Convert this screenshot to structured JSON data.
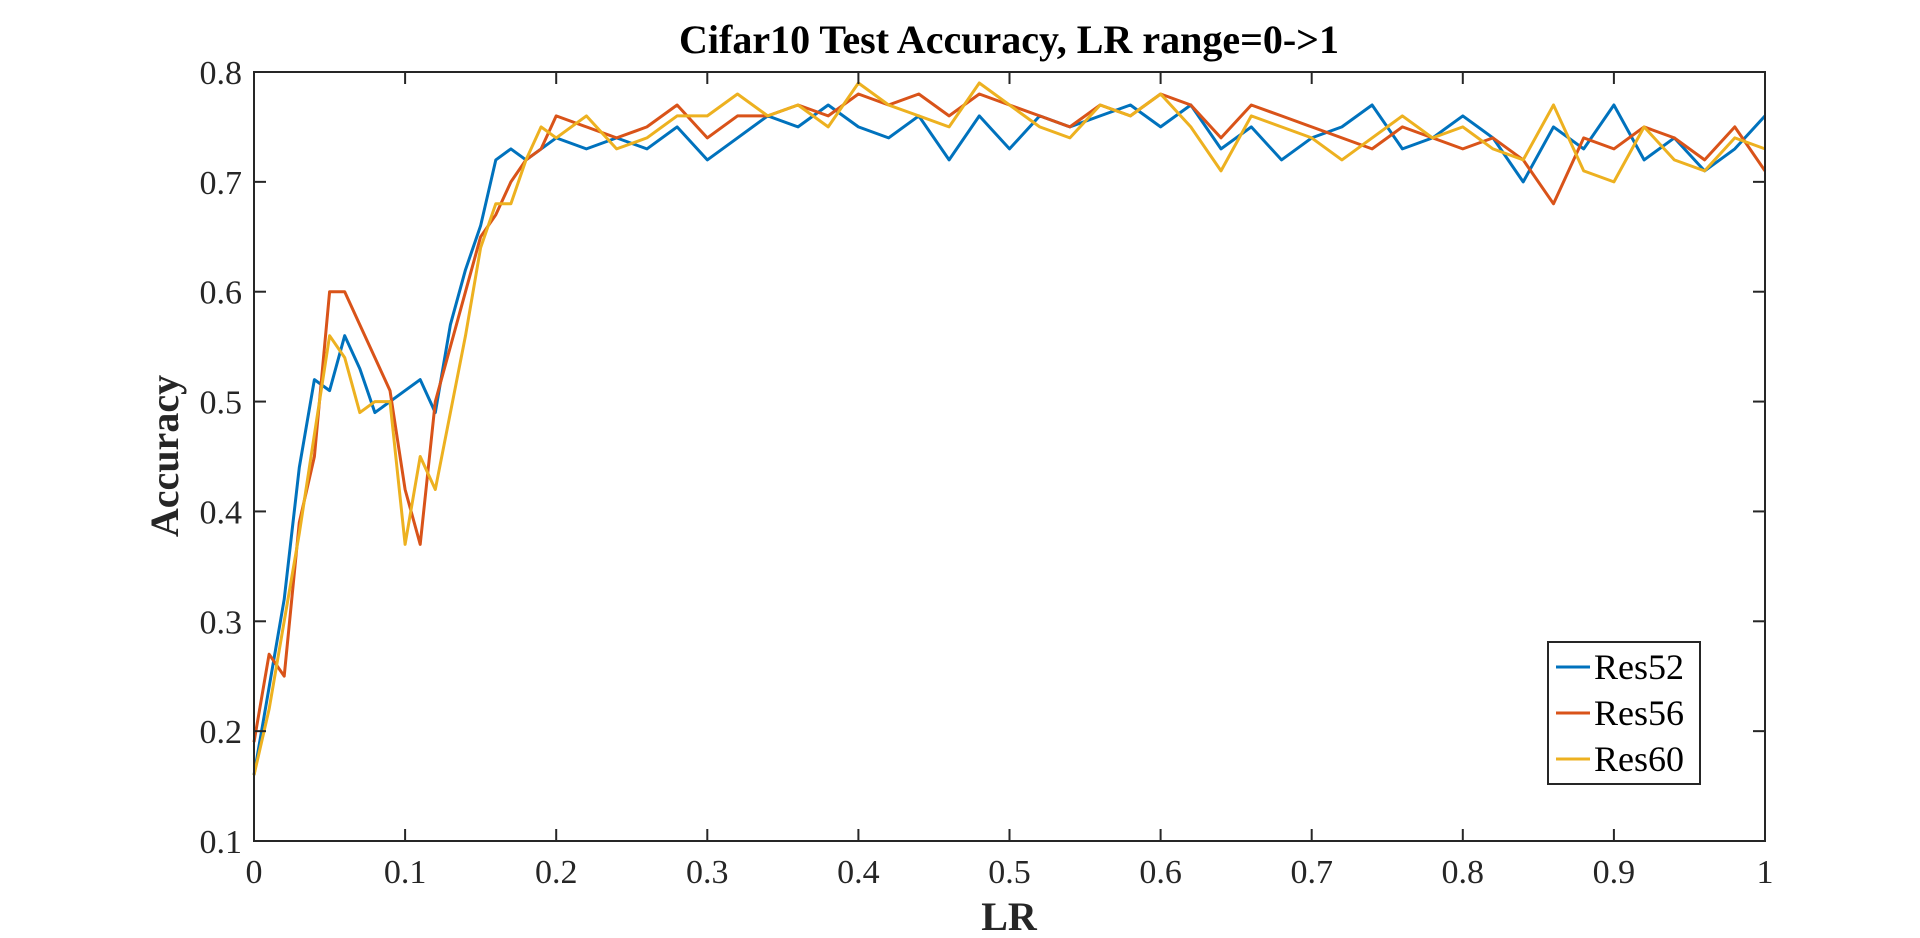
{
  "chart_data": {
    "type": "line",
    "title": "Cifar10 Test Accuracy, LR range=0->1",
    "xlabel": "LR",
    "ylabel": "Accuracy",
    "xlim": [
      0,
      1
    ],
    "ylim": [
      0.1,
      0.8
    ],
    "xticks": [
      "0",
      "0.1",
      "0.2",
      "0.3",
      "0.4",
      "0.5",
      "0.6",
      "0.7",
      "0.8",
      "0.9",
      "1"
    ],
    "yticks": [
      "0.1",
      "0.2",
      "0.3",
      "0.4",
      "0.5",
      "0.6",
      "0.7",
      "0.8"
    ],
    "grid": false,
    "legend_position": "bottom-right",
    "x": [
      0,
      0.01,
      0.02,
      0.03,
      0.04,
      0.05,
      0.06,
      0.07,
      0.08,
      0.09,
      0.1,
      0.11,
      0.12,
      0.13,
      0.14,
      0.15,
      0.16,
      0.17,
      0.18,
      0.19,
      0.2,
      0.22,
      0.24,
      0.26,
      0.28,
      0.3,
      0.32,
      0.34,
      0.36,
      0.38,
      0.4,
      0.42,
      0.44,
      0.46,
      0.48,
      0.5,
      0.52,
      0.54,
      0.56,
      0.58,
      0.6,
      0.62,
      0.64,
      0.66,
      0.68,
      0.7,
      0.72,
      0.74,
      0.76,
      0.78,
      0.8,
      0.82,
      0.84,
      0.86,
      0.88,
      0.9,
      0.92,
      0.94,
      0.96,
      0.98,
      1.0
    ],
    "series": [
      {
        "name": "Res52",
        "color": "#0072BD",
        "values": [
          0.16,
          0.24,
          0.32,
          0.44,
          0.52,
          0.51,
          0.56,
          0.53,
          0.49,
          0.5,
          0.51,
          0.52,
          0.49,
          0.57,
          0.62,
          0.66,
          0.72,
          0.73,
          0.72,
          0.73,
          0.74,
          0.73,
          0.74,
          0.73,
          0.75,
          0.72,
          0.74,
          0.76,
          0.75,
          0.77,
          0.75,
          0.74,
          0.76,
          0.72,
          0.76,
          0.73,
          0.76,
          0.75,
          0.76,
          0.77,
          0.75,
          0.77,
          0.73,
          0.75,
          0.72,
          0.74,
          0.75,
          0.77,
          0.73,
          0.74,
          0.76,
          0.74,
          0.7,
          0.75,
          0.73,
          0.77,
          0.72,
          0.74,
          0.71,
          0.73,
          0.76
        ]
      },
      {
        "name": "Res56",
        "color": "#D95319",
        "values": [
          0.19,
          0.27,
          0.25,
          0.39,
          0.45,
          0.6,
          0.6,
          0.57,
          0.54,
          0.51,
          0.42,
          0.37,
          0.5,
          0.55,
          0.6,
          0.65,
          0.67,
          0.7,
          0.72,
          0.73,
          0.76,
          0.75,
          0.74,
          0.75,
          0.77,
          0.74,
          0.76,
          0.76,
          0.77,
          0.76,
          0.78,
          0.77,
          0.78,
          0.76,
          0.78,
          0.77,
          0.76,
          0.75,
          0.77,
          0.76,
          0.78,
          0.77,
          0.74,
          0.77,
          0.76,
          0.75,
          0.74,
          0.73,
          0.75,
          0.74,
          0.73,
          0.74,
          0.72,
          0.68,
          0.74,
          0.73,
          0.75,
          0.74,
          0.72,
          0.75,
          0.71
        ]
      },
      {
        "name": "Res60",
        "color": "#EDB120",
        "values": [
          0.16,
          0.22,
          0.3,
          0.38,
          0.47,
          0.56,
          0.54,
          0.49,
          0.5,
          0.5,
          0.37,
          0.45,
          0.42,
          0.49,
          0.56,
          0.64,
          0.68,
          0.68,
          0.72,
          0.75,
          0.74,
          0.76,
          0.73,
          0.74,
          0.76,
          0.76,
          0.78,
          0.76,
          0.77,
          0.75,
          0.79,
          0.77,
          0.76,
          0.75,
          0.79,
          0.77,
          0.75,
          0.74,
          0.77,
          0.76,
          0.78,
          0.75,
          0.71,
          0.76,
          0.75,
          0.74,
          0.72,
          0.74,
          0.76,
          0.74,
          0.75,
          0.73,
          0.72,
          0.77,
          0.71,
          0.7,
          0.75,
          0.72,
          0.71,
          0.74,
          0.73
        ]
      }
    ]
  }
}
